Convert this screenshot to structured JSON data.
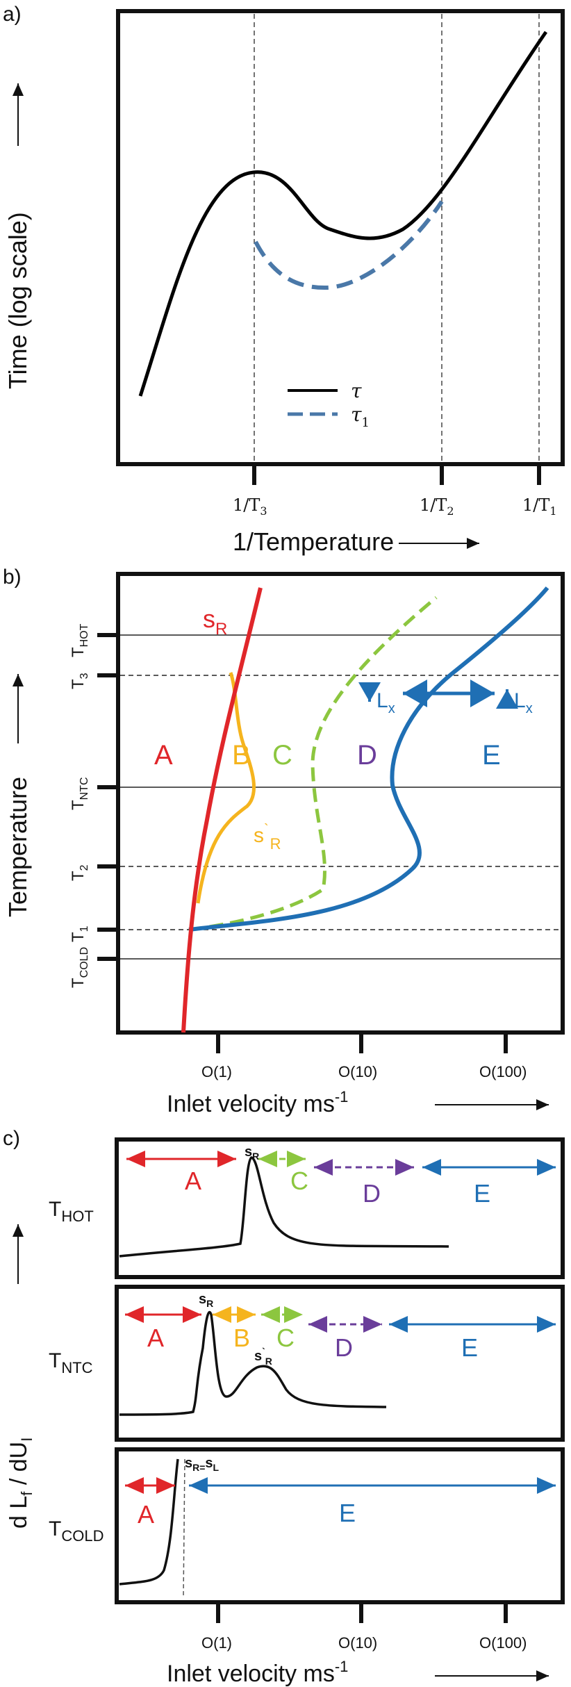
{
  "panel_a": {
    "label": "a)",
    "y_label": "Time (log scale)",
    "x_label": "1/Temperature",
    "ticks": [
      {
        "id": "t3",
        "label": "1/T",
        "sub": "3"
      },
      {
        "id": "t2",
        "label": "1/T",
        "sub": "2"
      },
      {
        "id": "t1",
        "label": "1/T",
        "sub": "1"
      }
    ],
    "legend": [
      {
        "name": "τ",
        "sub": "",
        "style": "solid",
        "color": "#000000"
      },
      {
        "name": "τ",
        "sub": "1",
        "style": "dashed",
        "color": "#4a78a8"
      }
    ]
  },
  "panel_b": {
    "label": "b)",
    "y_label": "Temperature",
    "x_label": "Inlet velocity  ms",
    "x_label_sup": "-1",
    "x_ticks": [
      "O(1)",
      "O(10)",
      "O(100)"
    ],
    "y_ticks": [
      {
        "id": "thot",
        "label": "T",
        "sub": "HOT"
      },
      {
        "id": "t3",
        "label": "T",
        "sub": "3"
      },
      {
        "id": "tntc",
        "label": "T",
        "sub": "NTC"
      },
      {
        "id": "t2",
        "label": "T",
        "sub": "2"
      },
      {
        "id": "t1",
        "label": "T",
        "sub": "1"
      },
      {
        "id": "tcold",
        "label": "T",
        "sub": "COLD"
      }
    ],
    "curve_labels": {
      "sr": {
        "main": "s",
        "sub": "R"
      },
      "sr_prime": {
        "main": "s",
        "sub": "R",
        "prime": "`"
      },
      "lx_left": {
        "main": "L",
        "sub": "x"
      },
      "lx_right": {
        "main": "L",
        "sub": "x"
      }
    },
    "regions": [
      {
        "name": "A",
        "color": "#e0262a"
      },
      {
        "name": "B",
        "color": "#f5b41e"
      },
      {
        "name": "C",
        "color": "#8cc63f"
      },
      {
        "name": "D",
        "color": "#6a3d9a"
      },
      {
        "name": "E",
        "color": "#1f6fb4"
      }
    ]
  },
  "panel_c": {
    "label": "c)",
    "y_label": "d L",
    "y_label_sub": "f",
    "y_label_mid": " / dU",
    "y_label_sub2": "I",
    "x_label": "Inlet velocity  ms",
    "x_label_sup": "-1",
    "x_ticks": [
      "O(1)",
      "O(10)",
      "O(100)"
    ],
    "subpanels": [
      {
        "id": "hot",
        "temp": "T",
        "temp_sub": "HOT",
        "peak": "s",
        "peak_sub": "R"
      },
      {
        "id": "ntc",
        "temp": "T",
        "temp_sub": "NTC",
        "peak": "s",
        "peak_sub": "R",
        "peak2": "s",
        "peak2_sub": "R",
        "peak2_prime": "`"
      },
      {
        "id": "cold",
        "temp": "T",
        "temp_sub": "COLD",
        "peak": "s",
        "peak_sub": "R=",
        "peak_mid": "s",
        "peak_sub2": "L"
      }
    ],
    "regions": {
      "A": "A",
      "B": "B",
      "C": "C",
      "D": "D",
      "E": "E"
    }
  },
  "colors": {
    "red": "#e0262a",
    "yellow": "#f5b41e",
    "green": "#8cc63f",
    "purple": "#6a3d9a",
    "blue": "#1f6fb4",
    "dashblue": "#4a78a8"
  }
}
